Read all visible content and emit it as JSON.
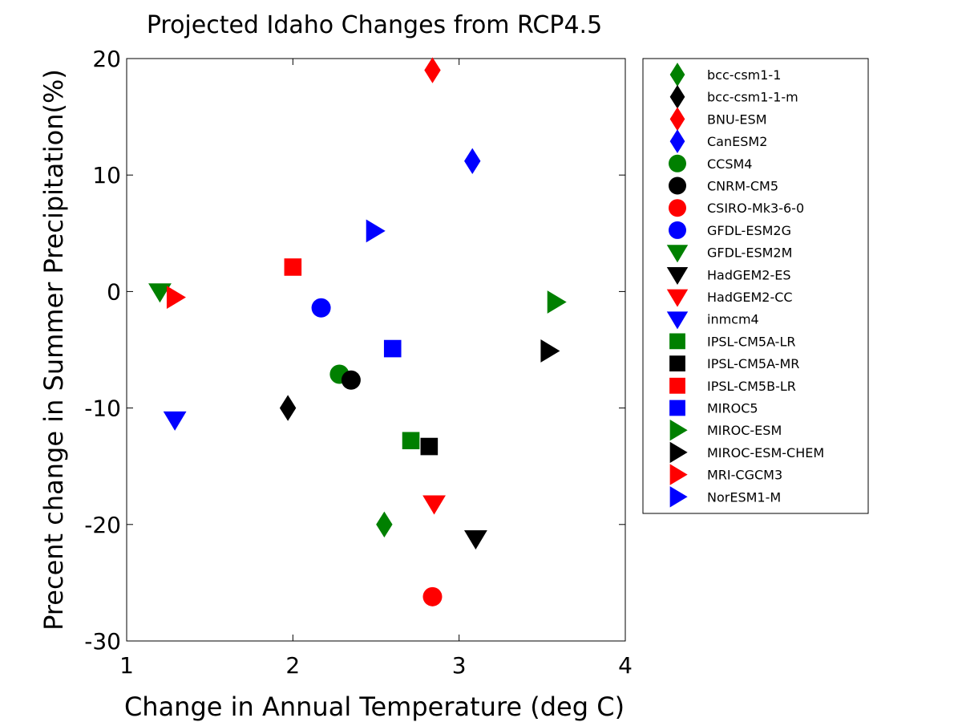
{
  "chart_data": {
    "type": "scatter",
    "title": "Projected Idaho Changes from RCP4.5",
    "xlabel": "Change in Annual Temperature (deg C)",
    "ylabel": "Precent change in Summer Precipitation(%)",
    "xlim": [
      1,
      4
    ],
    "ylim": [
      -30,
      20
    ],
    "xticks": [
      1,
      2,
      3,
      4
    ],
    "yticks": [
      20,
      10,
      0,
      -10,
      -20,
      -30
    ],
    "xtick_labels": [
      "1",
      "2",
      "3",
      "4"
    ],
    "ytick_labels": [
      "20",
      "10",
      "0",
      "-10",
      "-20",
      "-30"
    ],
    "grid": false,
    "legend_position": "outside-right",
    "series": [
      {
        "name": "bcc-csm1-1",
        "marker": "diamond",
        "color": "#008000",
        "x": 2.55,
        "y": -20.0
      },
      {
        "name": "bcc-csm1-1-m",
        "marker": "diamond",
        "color": "#000000",
        "x": 1.97,
        "y": -10.0
      },
      {
        "name": "BNU-ESM",
        "marker": "diamond",
        "color": "#ff0000",
        "x": 2.84,
        "y": 19.0
      },
      {
        "name": "CanESM2",
        "marker": "diamond",
        "color": "#0000ff",
        "x": 3.08,
        "y": 11.2
      },
      {
        "name": "CCSM4",
        "marker": "circle",
        "color": "#008000",
        "x": 2.28,
        "y": -7.1
      },
      {
        "name": "CNRM-CM5",
        "marker": "circle",
        "color": "#000000",
        "x": 2.35,
        "y": -7.6
      },
      {
        "name": "CSIRO-Mk3-6-0",
        "marker": "circle",
        "color": "#ff0000",
        "x": 2.84,
        "y": -26.2
      },
      {
        "name": "GFDL-ESM2G",
        "marker": "circle",
        "color": "#0000ff",
        "x": 2.17,
        "y": -1.4
      },
      {
        "name": "GFDL-ESM2M",
        "marker": "triangle-down",
        "color": "#008000",
        "x": 1.2,
        "y": 0.0
      },
      {
        "name": "HadGEM2-ES",
        "marker": "triangle-down",
        "color": "#000000",
        "x": 3.1,
        "y": -21.2
      },
      {
        "name": "HadGEM2-CC",
        "marker": "triangle-down",
        "color": "#ff0000",
        "x": 2.85,
        "y": -18.2
      },
      {
        "name": "inmcm4",
        "marker": "triangle-down",
        "color": "#0000ff",
        "x": 1.29,
        "y": -11.0
      },
      {
        "name": "IPSL-CM5A-LR",
        "marker": "square",
        "color": "#008000",
        "x": 2.71,
        "y": -12.8
      },
      {
        "name": "IPSL-CM5A-MR",
        "marker": "square",
        "color": "#000000",
        "x": 2.82,
        "y": -13.3
      },
      {
        "name": "IPSL-CM5B-LR",
        "marker": "square",
        "color": "#ff0000",
        "x": 2.0,
        "y": 2.1
      },
      {
        "name": "MIROC5",
        "marker": "square",
        "color": "#0000ff",
        "x": 2.6,
        "y": -4.9
      },
      {
        "name": "MIROC-ESM",
        "marker": "triangle-right",
        "color": "#008000",
        "x": 3.58,
        "y": -0.9
      },
      {
        "name": "MIROC-ESM-CHEM",
        "marker": "triangle-right",
        "color": "#000000",
        "x": 3.54,
        "y": -5.1
      },
      {
        "name": "MRI-CGCM3",
        "marker": "triangle-right",
        "color": "#ff0000",
        "x": 1.29,
        "y": -0.5
      },
      {
        "name": "NorESM1-M",
        "marker": "triangle-right",
        "color": "#0000ff",
        "x": 2.49,
        "y": 5.2
      }
    ]
  }
}
